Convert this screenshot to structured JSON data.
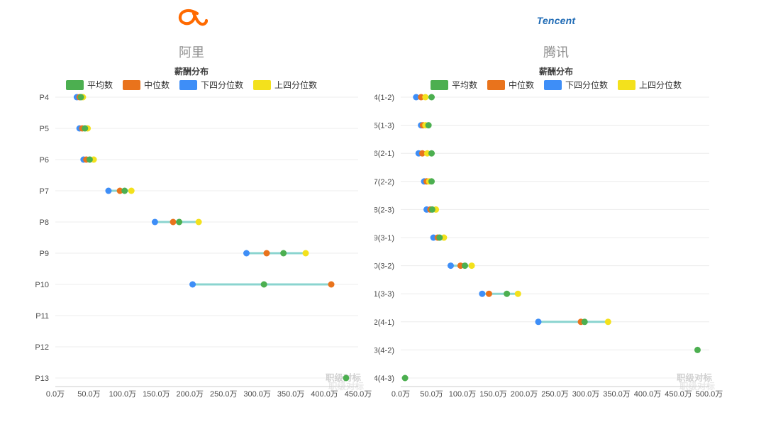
{
  "page": {
    "background": "#ffffff"
  },
  "brand": {
    "alibaba_orange": "#ff6a00",
    "tencent_blue": "#1f6bb5"
  },
  "chart_data": [
    {
      "type": "scatter",
      "orientation": "horizontal-dot-plot",
      "title": "阿里",
      "subtitle": "薪酬分布",
      "watermark": "职级对标",
      "legend_position": "top",
      "grid": "horizontal-only",
      "connector_color": "#7fd1cb",
      "xlim": [
        0,
        450
      ],
      "x_tick_step": 50,
      "x_ticks": [
        "0.0万",
        "50.0万",
        "100.0万",
        "150.0万",
        "200.0万",
        "250.0万",
        "300.0万",
        "350.0万",
        "400.0万",
        "450.0万"
      ],
      "categories": [
        "P4",
        "P5",
        "P6",
        "P7",
        "P8",
        "P9",
        "P10",
        "P11",
        "P12",
        "P13"
      ],
      "unit": "万",
      "series": [
        {
          "name": "平均数",
          "color": "#4caf50",
          "values": [
            38,
            44,
            51,
            103,
            184,
            339,
            310,
            null,
            null,
            432
          ]
        },
        {
          "name": "中位数",
          "color": "#e9731c",
          "values": [
            36,
            40,
            46,
            96,
            175,
            314,
            410,
            null,
            null,
            null
          ]
        },
        {
          "name": "下四分位数",
          "color": "#3e8ef7",
          "values": [
            32,
            36,
            42,
            79,
            148,
            284,
            204,
            null,
            null,
            null
          ]
        },
        {
          "name": "上四分位数",
          "color": "#f3e11c",
          "values": [
            41,
            48,
            57,
            113,
            213,
            372,
            null,
            null,
            null,
            null
          ]
        }
      ]
    },
    {
      "type": "scatter",
      "orientation": "horizontal-dot-plot",
      "title": "腾讯",
      "subtitle": "薪酬分布",
      "logo_text": "Tencent",
      "watermark": "职级对标",
      "legend_position": "top",
      "grid": "horizontal-only",
      "connector_color": "#7fd1cb",
      "xlim": [
        0,
        500
      ],
      "x_tick_step": 50,
      "x_ticks": [
        "0.0万",
        "50.0万",
        "100.0万",
        "150.0万",
        "200.0万",
        "250.0万",
        "300.0万",
        "350.0万",
        "400.0万",
        "450.0万",
        "500.0万"
      ],
      "categories": [
        "4(1-2)",
        "5(1-3)",
        "6(2-1)",
        "7(2-2)",
        "8(2-3)",
        "9(3-1)",
        "10(3-2)",
        "11(3-3)",
        "12(4-1)",
        "13(4-2)",
        "14(4-3)"
      ],
      "unit": "万",
      "series": [
        {
          "name": "平均数",
          "color": "#4caf50",
          "values": [
            50,
            45,
            50,
            50,
            51,
            63,
            104,
            172,
            298,
            481,
            7
          ]
        },
        {
          "name": "中位数",
          "color": "#e9731c",
          "values": [
            33,
            36,
            35,
            42,
            48,
            60,
            97,
            143,
            292,
            null,
            null
          ]
        },
        {
          "name": "下四分位数",
          "color": "#3e8ef7",
          "values": [
            25,
            33,
            29,
            38,
            42,
            53,
            81,
            132,
            223,
            null,
            null
          ]
        },
        {
          "name": "上四分位数",
          "color": "#f3e11c",
          "values": [
            40,
            40,
            43,
            46,
            57,
            70,
            115,
            190,
            336,
            null,
            null
          ]
        }
      ]
    }
  ]
}
